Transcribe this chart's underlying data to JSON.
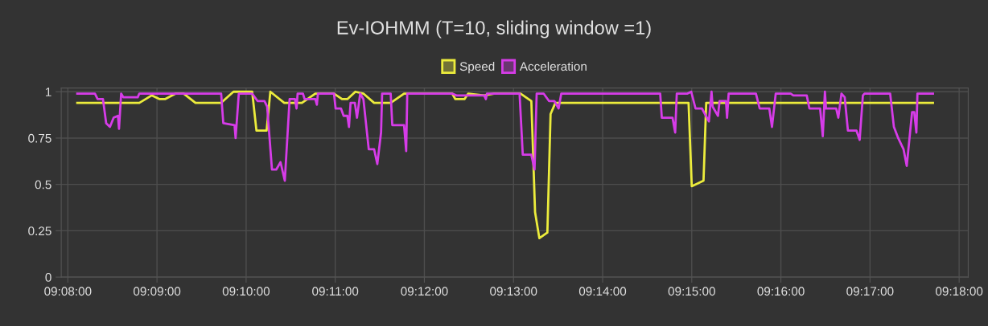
{
  "chart_data": {
    "type": "line",
    "title": "Ev-IOHMM (T=10, sliding window =1)",
    "xlim": [
      9.1321,
      9.3017
    ],
    "ylim": [
      0,
      1.02
    ],
    "xticks": [
      {
        "value": 9.133333,
        "label": "09:08:00"
      },
      {
        "value": 9.15,
        "label": "09:09:00"
      },
      {
        "value": 9.166667,
        "label": "09:10:00"
      },
      {
        "value": 9.183333,
        "label": "09:11:00"
      },
      {
        "value": 9.2,
        "label": "09:12:00"
      },
      {
        "value": 9.216667,
        "label": "09:13:00"
      },
      {
        "value": 9.233333,
        "label": "09:14:00"
      },
      {
        "value": 9.25,
        "label": "09:15:00"
      },
      {
        "value": 9.266667,
        "label": "09:16:00"
      },
      {
        "value": 9.283333,
        "label": "09:17:00"
      },
      {
        "value": 9.3,
        "label": "09:18:00"
      }
    ],
    "yticks": [
      0,
      0.25,
      0.5,
      0.75,
      1
    ],
    "grid": true,
    "legend": "top",
    "marker": "none",
    "line_style": "solid",
    "series": [
      {
        "name": "Speed",
        "color": "#ecec3c",
        "x": [
          9.1351,
          9.1467,
          9.149,
          9.1505,
          9.1515,
          9.1535,
          9.155,
          9.1572,
          9.162,
          9.1643,
          9.1678,
          9.1686,
          9.1705,
          9.1712,
          9.1738,
          9.1771,
          9.1796,
          9.1831,
          9.1846,
          9.1856,
          9.1871,
          9.1886,
          9.1906,
          9.1937,
          9.1962,
          9.2052,
          9.2058,
          9.2075,
          9.2082,
          9.2112,
          9.213,
          9.218,
          9.22,
          9.2207,
          9.2215,
          9.223,
          9.2236,
          9.2245,
          9.2494,
          9.25,
          9.2522,
          9.2527,
          9.2951
        ],
        "values": [
          0.94,
          0.94,
          0.98,
          0.96,
          0.96,
          0.99,
          0.99,
          0.94,
          0.94,
          1.0,
          1.0,
          0.79,
          0.79,
          1.0,
          0.94,
          0.94,
          0.99,
          0.99,
          0.96,
          0.96,
          1.0,
          0.99,
          0.94,
          0.94,
          0.99,
          0.99,
          0.96,
          0.96,
          0.99,
          0.98,
          0.99,
          0.99,
          0.95,
          0.35,
          0.21,
          0.24,
          0.88,
          0.94,
          0.94,
          0.49,
          0.52,
          0.94,
          0.94
        ]
      },
      {
        "name": "Acceleration",
        "color": "#d63ce8",
        "x": [
          9.1351,
          9.1384,
          9.1389,
          9.1399,
          9.1405,
          9.1412,
          9.1419,
          9.1427,
          9.1429,
          9.1433,
          9.1437,
          9.1464,
          9.1467,
          9.162,
          9.1624,
          9.1645,
          9.1647,
          9.1653,
          9.1678,
          9.1688,
          9.1701,
          9.1706,
          9.1715,
          9.1723,
          9.1731,
          9.1739,
          9.1748,
          9.1758,
          9.1761,
          9.1763,
          9.1773,
          9.1776,
          9.1796,
          9.1799,
          9.1801,
          9.1831,
          9.1834,
          9.1844,
          9.1849,
          9.1856,
          9.1859,
          9.1862,
          9.187,
          9.1874,
          9.188,
          9.1886,
          9.1896,
          9.1906,
          9.1912,
          9.1919,
          9.1921,
          9.1937,
          9.194,
          9.1962,
          9.1966,
          9.1968,
          9.2052,
          9.206,
          9.2112,
          9.2115,
          9.2117,
          9.2178,
          9.2184,
          9.22,
          9.2206,
          9.221,
          9.2223,
          9.2233,
          9.2243,
          9.2251,
          9.2256,
          9.2441,
          9.2444,
          9.2464,
          9.2469,
          9.2472,
          9.2492,
          9.2499,
          9.2507,
          9.2519,
          9.2532,
          9.2537,
          9.2539,
          9.2549,
          9.2552,
          9.2564,
          9.2566,
          9.2569,
          9.262,
          9.2627,
          9.2645,
          9.265,
          9.2657,
          9.2685,
          9.269,
          9.2715,
          9.272,
          9.274,
          9.2745,
          9.2749,
          9.2751,
          9.277,
          9.2774,
          9.278,
          9.2786,
          9.2792,
          9.2808,
          9.2814,
          9.282,
          9.2823,
          9.2871,
          9.2878,
          9.2886,
          9.2896,
          9.2902,
          9.2912,
          9.2916,
          9.292,
          9.2922,
          9.2951
        ],
        "values": [
          0.99,
          0.99,
          0.96,
          0.96,
          0.83,
          0.81,
          0.86,
          0.87,
          0.8,
          0.99,
          0.97,
          0.97,
          0.99,
          0.99,
          0.83,
          0.82,
          0.75,
          0.99,
          0.99,
          0.95,
          0.95,
          0.92,
          0.58,
          0.58,
          0.62,
          0.52,
          0.96,
          0.96,
          0.91,
          0.99,
          0.99,
          0.96,
          0.96,
          0.93,
          0.99,
          0.99,
          0.91,
          0.91,
          0.87,
          0.87,
          0.81,
          0.94,
          0.94,
          0.86,
          0.99,
          0.96,
          0.69,
          0.69,
          0.61,
          0.78,
          0.99,
          0.99,
          0.82,
          0.82,
          0.68,
          0.99,
          0.99,
          0.98,
          0.98,
          0.96,
          0.99,
          0.99,
          0.66,
          0.66,
          0.58,
          0.99,
          0.99,
          0.95,
          0.95,
          0.91,
          0.99,
          0.99,
          0.86,
          0.86,
          0.78,
          0.99,
          0.99,
          1.0,
          0.91,
          0.91,
          0.84,
          1.0,
          0.92,
          0.87,
          0.95,
          0.95,
          0.86,
          0.99,
          0.99,
          0.91,
          0.91,
          0.81,
          0.99,
          0.99,
          0.98,
          0.98,
          0.91,
          0.91,
          0.76,
          1.0,
          0.91,
          0.91,
          0.86,
          0.99,
          0.97,
          0.79,
          0.79,
          0.74,
          0.98,
          0.99,
          0.99,
          0.81,
          0.75,
          0.69,
          0.6,
          0.89,
          0.89,
          0.78,
          0.99,
          0.99
        ]
      }
    ]
  }
}
